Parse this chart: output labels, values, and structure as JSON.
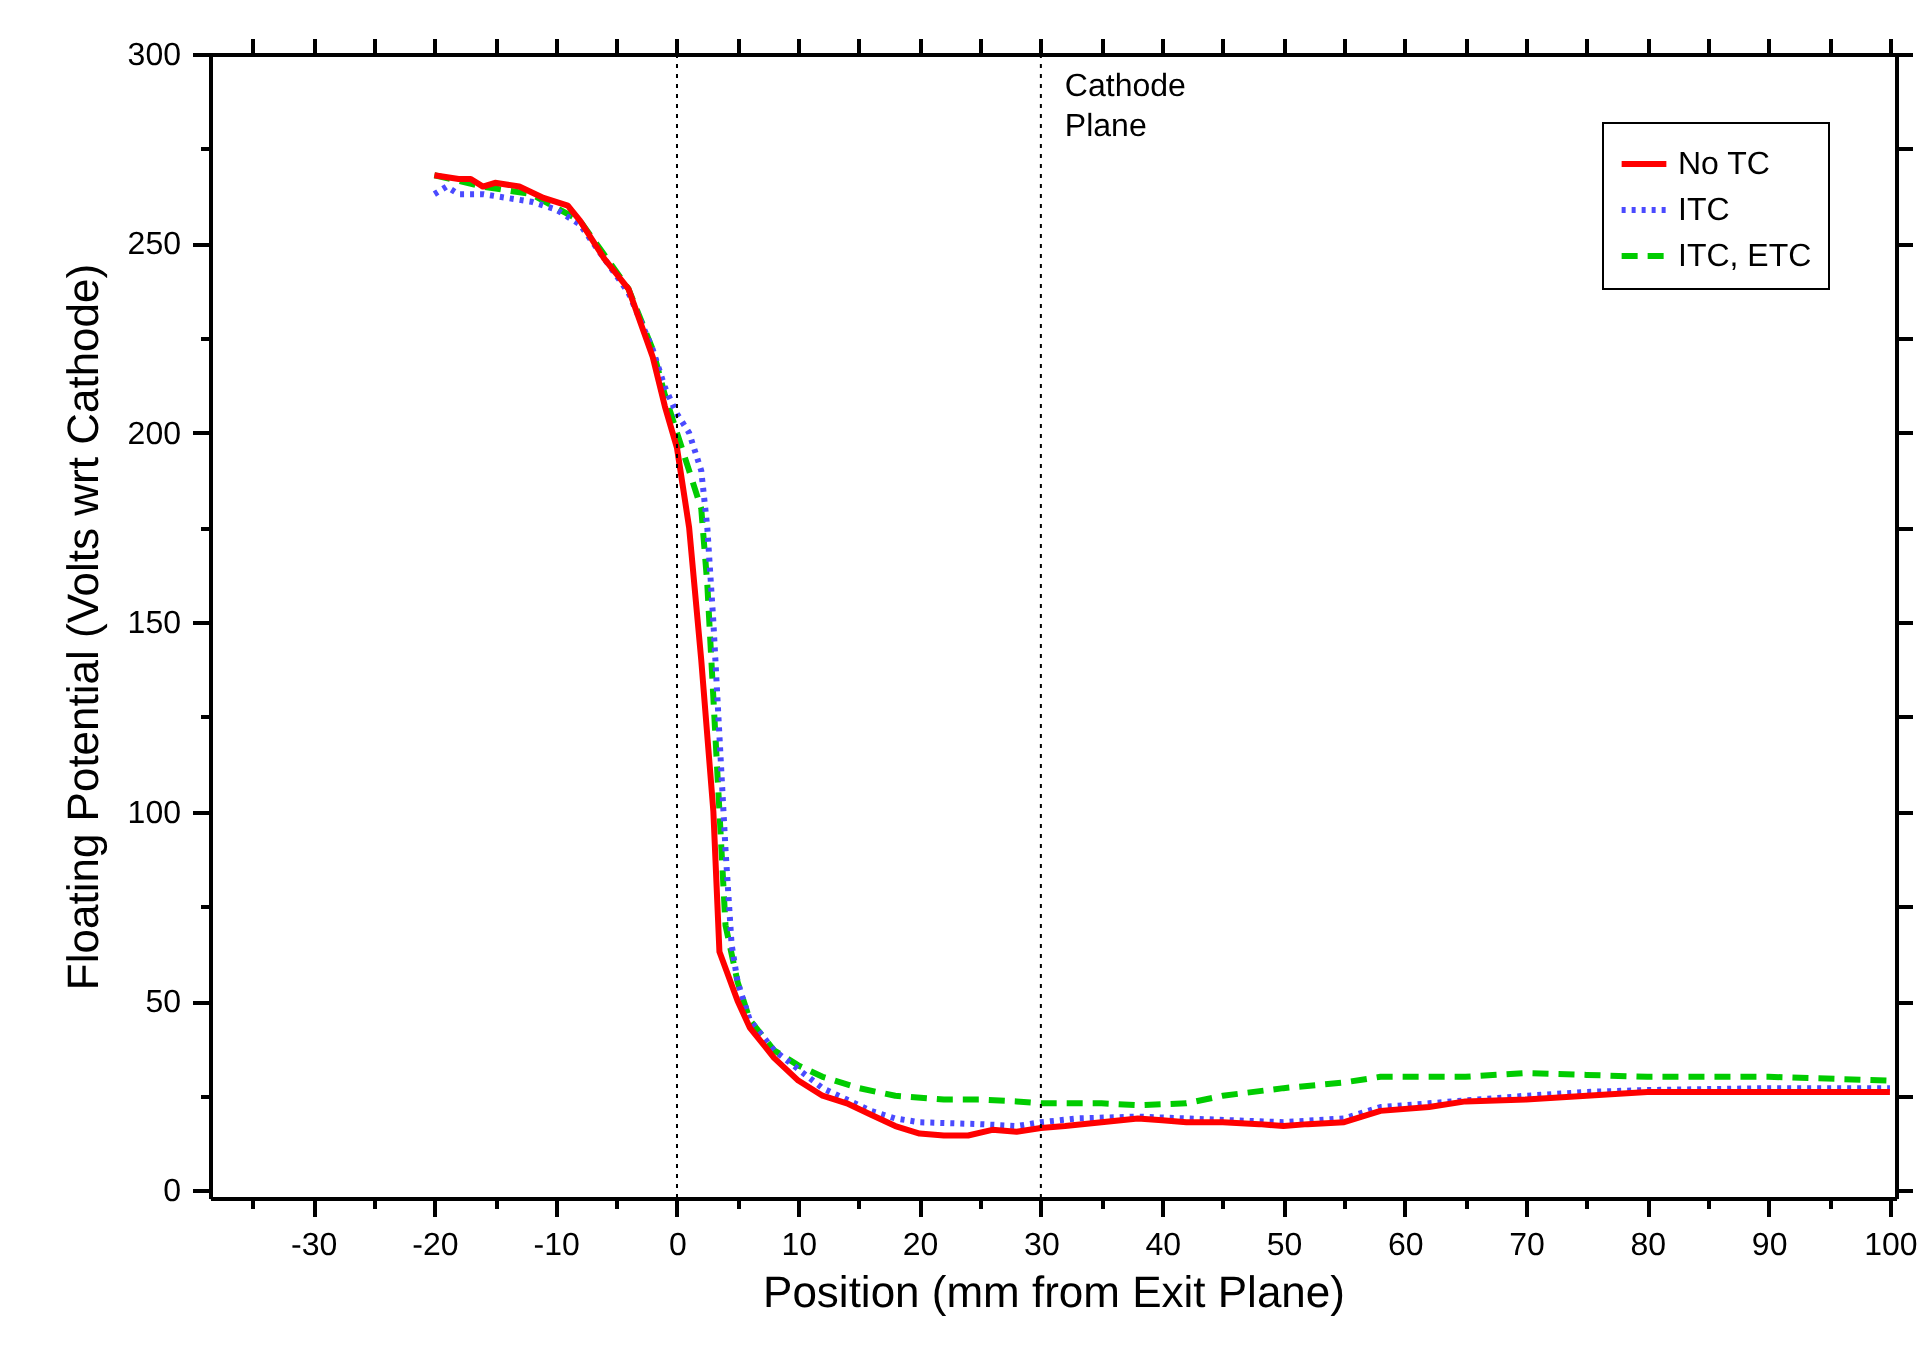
{
  "chart_data": {
    "type": "line",
    "xlabel": "Position (mm from Exit Plane)",
    "ylabel": "Floating Potential (Volts wrt Cathode)",
    "xlim": [
      -38.5,
      100.5
    ],
    "ylim": [
      -2,
      300
    ],
    "xticks": [
      {
        "value": -35,
        "label": null
      },
      -30,
      {
        "value": -25,
        "label": null
      },
      -20,
      {
        "value": -15,
        "label": null
      },
      -10,
      {
        "value": -5,
        "label": null
      },
      0,
      {
        "value": 5,
        "label": null
      },
      10,
      {
        "value": 15,
        "label": null
      },
      20,
      {
        "value": 25,
        "label": null
      },
      30,
      {
        "value": 35,
        "label": null
      },
      40,
      {
        "value": 45,
        "label": null
      },
      50,
      {
        "value": 55,
        "label": null
      },
      60,
      {
        "value": 65,
        "label": null
      },
      70,
      {
        "value": 75,
        "label": null
      },
      80,
      {
        "value": 85,
        "label": null
      },
      90,
      {
        "value": 95,
        "label": null
      },
      100
    ],
    "yticks": [
      0,
      {
        "value": 25,
        "label": null
      },
      50,
      {
        "value": 75,
        "label": null
      },
      100,
      {
        "value": 125,
        "label": null
      },
      150,
      {
        "value": 175,
        "label": null
      },
      200,
      {
        "value": 225,
        "label": null
      },
      250,
      {
        "value": 275,
        "label": null
      },
      300
    ],
    "grid": false,
    "legend": "top right",
    "ref_lines": [
      {
        "axis": "x",
        "value": 0,
        "line_style": "dotted",
        "color": "#000000"
      },
      {
        "axis": "x",
        "value": 30,
        "label": "Cathode Plane",
        "line_style": "dotted",
        "color": "#000000"
      }
    ],
    "series": [
      {
        "name": "No TC",
        "color": "#ff0000",
        "line_style": "solid",
        "x": [
          -20,
          -18,
          -17,
          -16,
          -15,
          -13,
          -11,
          -9,
          -8,
          -6,
          -4,
          -3,
          -2,
          -1,
          0,
          1,
          2,
          3,
          3.5,
          5,
          6,
          8,
          10,
          12,
          14,
          16,
          18,
          20,
          22,
          24,
          26,
          28,
          30,
          32,
          35,
          38,
          40,
          42,
          45,
          48,
          50,
          52,
          55,
          58,
          62,
          65,
          70,
          75,
          80,
          90,
          100
        ],
        "values": [
          268,
          267,
          267,
          265,
          266,
          265,
          262,
          260,
          256,
          246,
          238,
          229,
          220,
          207,
          196,
          175,
          140,
          100,
          63,
          50,
          43,
          35,
          29,
          25,
          23,
          20,
          17,
          15,
          14.5,
          14.5,
          16,
          15.5,
          16.5,
          17,
          18,
          19,
          18.5,
          18,
          18,
          17.5,
          17,
          17.5,
          18,
          21,
          22,
          23.5,
          24,
          25,
          26,
          26,
          26
        ]
      },
      {
        "name": "ITC",
        "color": "#4a4aff",
        "line_style": "dotted",
        "x": [
          -20,
          -19,
          -18,
          -16,
          -14,
          -12,
          -10,
          -8,
          -6,
          -4,
          -2,
          -1,
          0,
          1,
          2,
          2.5,
          3,
          3.5,
          4,
          4.5,
          5,
          6,
          8,
          10,
          12,
          14,
          16,
          18,
          20,
          25,
          28,
          30,
          33,
          38,
          42,
          46,
          50,
          55,
          58,
          62,
          66,
          70,
          75,
          80,
          90,
          100
        ],
        "values": [
          263,
          265,
          263,
          263,
          262,
          261,
          259,
          255,
          246,
          237,
          222,
          212,
          205,
          200,
          190,
          175,
          150,
          120,
          90,
          65,
          55,
          45,
          37,
          32,
          27,
          24,
          21,
          19,
          18,
          17.5,
          17,
          18,
          19,
          19.5,
          19,
          18.5,
          18,
          19,
          22,
          23,
          24,
          25,
          26,
          26.5,
          27,
          27
        ]
      },
      {
        "name": "ITC, ETC",
        "color": "#00cc00",
        "line_style": "dashed",
        "x": [
          -20,
          -16,
          -12,
          -8,
          -4,
          -2,
          -1,
          0,
          1,
          2,
          2.5,
          3,
          3.5,
          4,
          5,
          6,
          8,
          10,
          12,
          15,
          18,
          22,
          25,
          28,
          30,
          35,
          38,
          42,
          45,
          50,
          55,
          58,
          65,
          70,
          75,
          80,
          90,
          100
        ],
        "values": [
          268,
          265,
          263,
          256,
          238,
          222,
          210,
          200,
          190,
          180,
          160,
          130,
          100,
          70,
          55,
          45,
          37,
          33,
          30,
          27,
          25,
          24,
          24,
          23.5,
          23,
          23,
          22.5,
          23,
          25,
          27,
          28.5,
          30,
          30,
          31,
          30.5,
          30,
          30,
          29
        ]
      }
    ]
  }
}
